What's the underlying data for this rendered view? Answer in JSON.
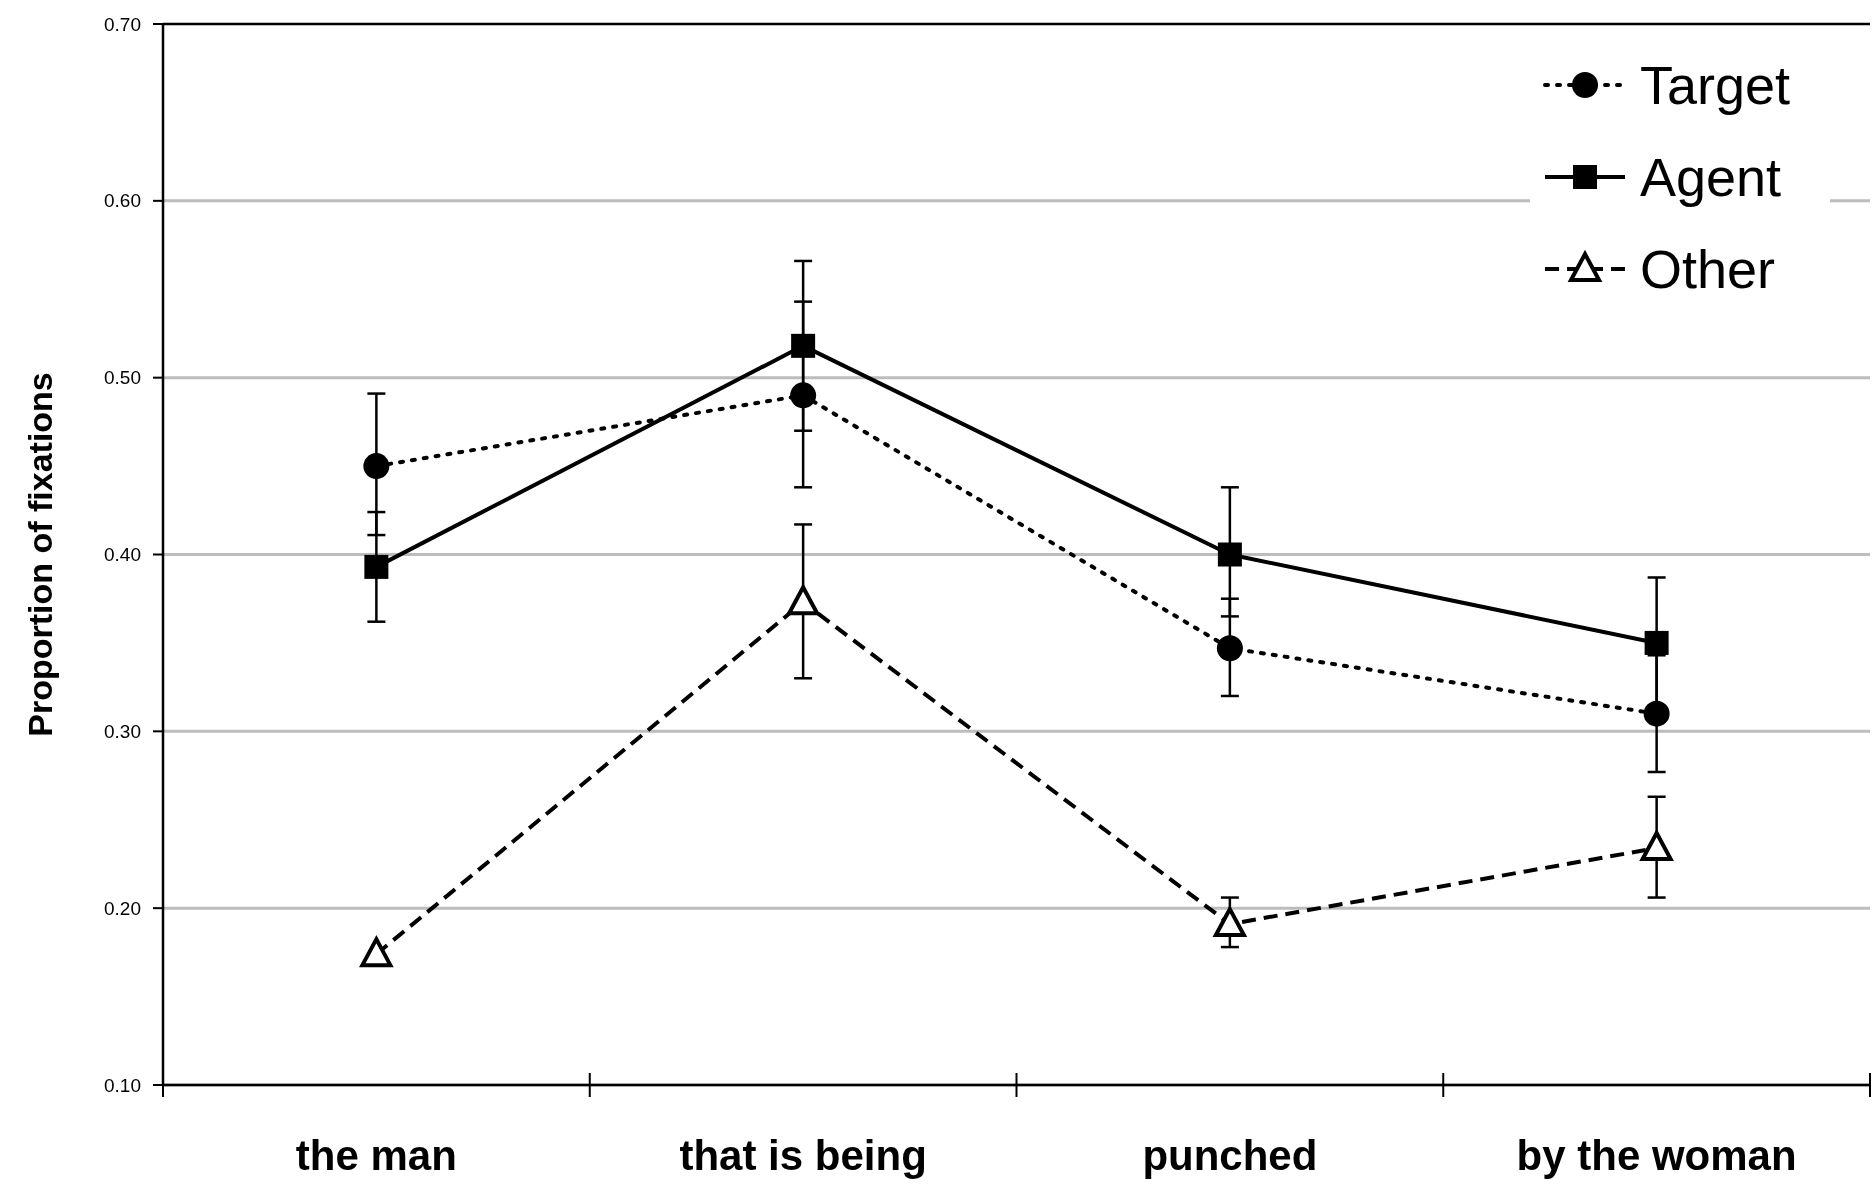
{
  "chart_data": {
    "type": "line",
    "ylabel": "Proportion of fixations",
    "categories": [
      "the man",
      "that is being",
      "punched",
      "by the woman"
    ],
    "ylim": [
      0.1,
      0.7
    ],
    "yticks": [
      {
        "value": 0.1,
        "label": "0.10"
      },
      {
        "value": 0.2,
        "label": "0.20"
      },
      {
        "value": 0.3,
        "label": "0.30"
      },
      {
        "value": 0.4,
        "label": "0.40"
      },
      {
        "value": 0.5,
        "label": "0.50"
      },
      {
        "value": 0.6,
        "label": "0.60"
      },
      {
        "value": 0.7,
        "label": "0.70"
      }
    ],
    "grid": "y",
    "legend": "top right",
    "series": [
      {
        "name": "Target",
        "color": "#000000",
        "marker": "circle",
        "line_style": "dotted",
        "values": [
          0.45,
          0.49,
          0.347,
          0.31
        ],
        "errors": [
          [
            0.411,
            0.491
          ],
          [
            0.438,
            0.543
          ],
          [
            0.32,
            0.375
          ],
          0.033
        ]
      },
      {
        "name": "Agent",
        "color": "#000000",
        "marker": "square",
        "line_style": "solid",
        "values": [
          0.393,
          0.518,
          0.4,
          0.35
        ],
        "errors": [
          [
            0.362,
            0.424
          ],
          [
            0.47,
            0.566
          ],
          [
            0.365,
            0.438
          ],
          0.037
        ]
      },
      {
        "name": "Other",
        "color": "#000000",
        "marker": "triangle",
        "line_style": "dashed",
        "values": [
          0.174,
          0.373,
          0.191,
          0.234
        ],
        "errors": [
          null,
          [
            0.33,
            0.417
          ],
          [
            0.178,
            0.206
          ],
          [
            0.206,
            0.263
          ]
        ]
      }
    ]
  }
}
